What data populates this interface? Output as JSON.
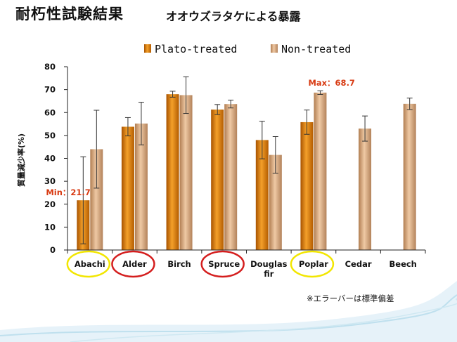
{
  "slide": {
    "title": "耐朽性試験結果",
    "subtitle": "オオウズラタケによる暴露",
    "footnote": "※エラーバーは標準偏差"
  },
  "colors": {
    "plato": "#e8890a",
    "non_treated": "#d9a77b",
    "highlight_yellow": "#f2e600",
    "highlight_red": "#d41e1e",
    "annotation": "#d83a12"
  },
  "chart_data": {
    "type": "bar",
    "ylabel": "質量減少率(%)",
    "ylim": [
      0,
      80
    ],
    "yticks": [
      0,
      10,
      20,
      30,
      40,
      50,
      60,
      70,
      80
    ],
    "categories": [
      "Abachi",
      "Alder",
      "Birch",
      "Spruce",
      "Douglas fir",
      "Poplar",
      "Cedar",
      "Beech"
    ],
    "series": [
      {
        "name": "Plato-treated",
        "values": [
          21.7,
          53.8,
          68.0,
          61.3,
          48.0,
          55.8,
          null,
          null
        ],
        "errors": [
          19.0,
          4.0,
          1.3,
          2.2,
          8.2,
          5.3,
          null,
          null
        ]
      },
      {
        "name": "Non-treated",
        "values": [
          44.0,
          55.2,
          67.6,
          63.7,
          41.5,
          68.7,
          53.0,
          63.8
        ],
        "errors": [
          17.0,
          9.3,
          8.0,
          1.7,
          8.0,
          0.8,
          5.5,
          2.5
        ]
      }
    ],
    "legend_position": "top",
    "annotations": [
      {
        "text": "Min：21.7",
        "category": "Abachi",
        "series": "Plato-treated"
      },
      {
        "text": "Max：68.7",
        "category": "Poplar",
        "series": "Non-treated"
      }
    ],
    "highlighted_categories": [
      {
        "category": "Abachi",
        "color": "yellow"
      },
      {
        "category": "Alder",
        "color": "red"
      },
      {
        "category": "Spruce",
        "color": "red"
      },
      {
        "category": "Poplar",
        "color": "yellow"
      }
    ]
  }
}
